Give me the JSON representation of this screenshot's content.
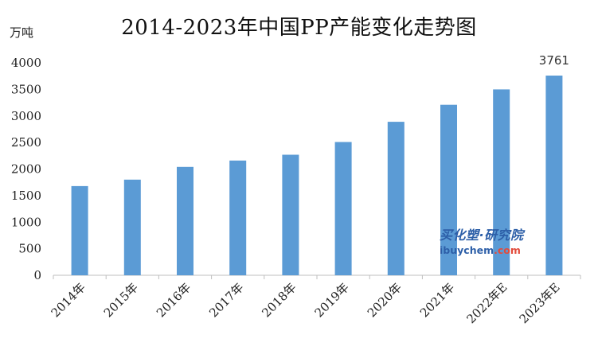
{
  "chart_data": {
    "type": "bar",
    "title": "2014-2023年中国PP产能变化走势图",
    "ylabel": "万吨",
    "xlabel": "",
    "categories": [
      "2014年",
      "2015年",
      "2016年",
      "2017年",
      "2018年",
      "2019年",
      "2020年",
      "2021年",
      "2022年E",
      "2023年E"
    ],
    "values": [
      1680,
      1800,
      2040,
      2160,
      2270,
      2510,
      2890,
      3210,
      3500,
      3761
    ],
    "ylim": [
      0,
      4000
    ],
    "yticks": [
      0,
      500,
      1000,
      1500,
      2000,
      2500,
      3000,
      3500,
      4000
    ],
    "data_labels": [
      {
        "index": 9,
        "text": "3761"
      }
    ],
    "bar_color": "#5b9bd5",
    "grid": false,
    "legend": "none"
  },
  "watermark": {
    "cn_text": "买化塑·研究院",
    "en_main": "ibuychem",
    "en_suffix": ".com",
    "color": "#2d5fa8",
    "accent_color": "#e24b3b"
  }
}
